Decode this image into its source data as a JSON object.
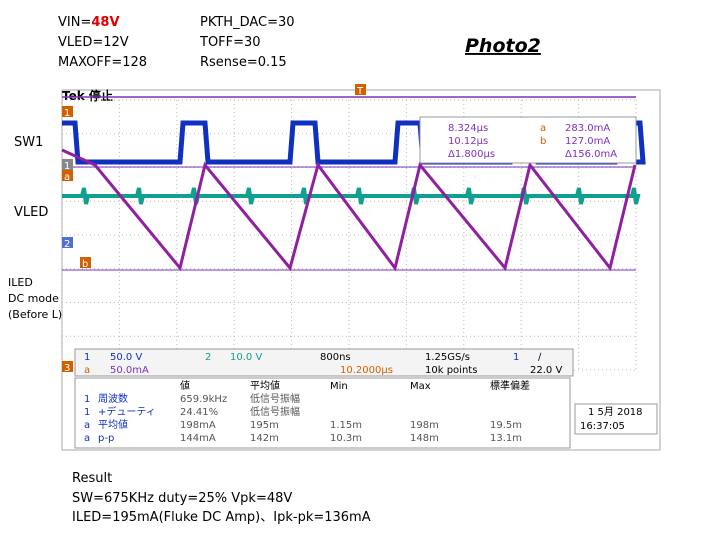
{
  "header": {
    "left": [
      "VIN=",
      "48V",
      "VLED=12V",
      "MAXOFF=128"
    ],
    "middle": [
      "PKTH_DAC=30",
      "TOFF=30",
      "Rsense=0.15"
    ],
    "photo": "Photo2"
  },
  "side_labels": [
    "SW1",
    "VLED",
    "ILED",
    "DC mode",
    "(Before L)"
  ],
  "scope": {
    "status": "Tek 停止",
    "markers": [
      "1",
      "a",
      "1",
      "2",
      "b",
      "3",
      "T"
    ],
    "cursor": {
      "times": [
        "8.324μs",
        "10.12μs",
        "Δ1.800μs"
      ],
      "names": [
        "a",
        "b"
      ],
      "values": [
        "283.0mA",
        "127.0mA",
        "Δ156.0mA"
      ]
    },
    "settings": {
      "ch1": [
        "1",
        "50.0 V"
      ],
      "cha": [
        "a",
        "50.0mA"
      ],
      "ch2": [
        "2",
        "10.0 V"
      ],
      "time": [
        "800ns",
        "10.2000μs"
      ],
      "rate": [
        "1.25GS/s",
        "10k points"
      ],
      "trig": [
        "1",
        "∕",
        "22.0 V"
      ]
    },
    "table": {
      "headers": [
        "値",
        "平均値",
        "Min",
        "Max",
        "標準偏差"
      ],
      "rows": [
        [
          "1",
          "周波数",
          "659.9kHz",
          "低信号振幅",
          "",
          "",
          ""
        ],
        [
          "1",
          "+デューティ",
          "24.41%",
          "低信号振幅",
          "",
          "",
          ""
        ],
        [
          "a",
          "平均値",
          "198mA",
          "195m",
          "1.15m",
          "198m",
          "19.5m"
        ],
        [
          "a",
          "p-p",
          "144mA",
          "142m",
          "10.3m",
          "148m",
          "13.1m"
        ]
      ]
    },
    "date": [
      "1 5月 2018",
      "16:37:05"
    ]
  },
  "result": {
    "title": "Result",
    "lines": [
      "SW=675KHz duty=25% Vpk=48V",
      "ILED=195mA(Fluke DC  Amp)、Ipk-pk=136mA"
    ]
  }
}
